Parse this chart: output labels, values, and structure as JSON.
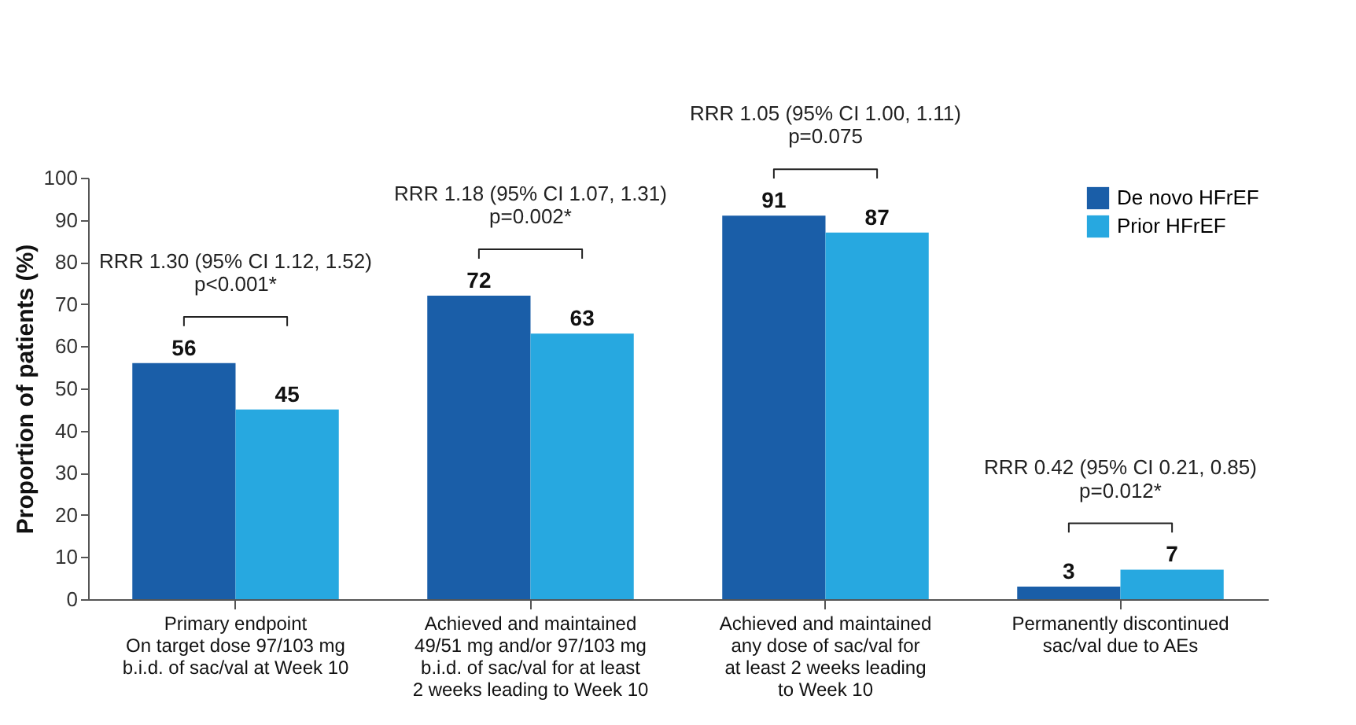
{
  "chart_data": {
    "type": "bar",
    "ylabel": "Proportion of patients (%)",
    "categories": [
      "Primary endpoint\nOn target dose 97/103 mg\nb.i.d. of sac/val at Week 10",
      "Achieved and maintained\n49/51 mg and/or 97/103 mg\nb.i.d. of sac/val for at least\n2 weeks leading to Week 10",
      "Achieved and maintained\nany dose of sac/val for\nat least 2 weeks leading\nto Week 10",
      "Permanently discontinued\nsac/val due to AEs"
    ],
    "series": [
      {
        "name": "De novo HFrEF",
        "color": "#1a5ea8",
        "values": [
          56,
          72,
          91,
          3
        ]
      },
      {
        "name": "Prior HFrEF",
        "color": "#27a8e0",
        "values": [
          45,
          63,
          87,
          7
        ]
      }
    ],
    "ylim": [
      0,
      100
    ],
    "yticks": [
      0,
      10,
      20,
      30,
      40,
      50,
      60,
      70,
      80,
      90,
      100
    ],
    "data_labels": true,
    "grid": false,
    "legend": "top right",
    "annotations": [
      "RRR 1.30 (95% CI 1.12, 1.52)",
      "p<0.001*",
      "RRR 1.18 (95% CI 1.07, 1.31)",
      "p=0.002*",
      "RRR 1.05 (95% CI 1.00, 1.11)",
      "p=0.075",
      "RRR 0.42 (95% CI 0.21, 0.85)",
      "p=0.012*"
    ]
  }
}
